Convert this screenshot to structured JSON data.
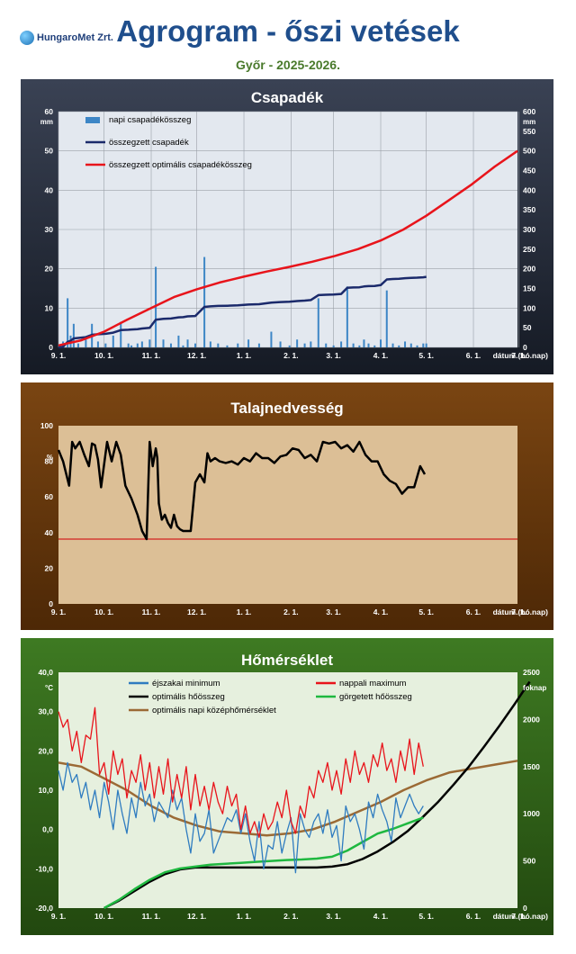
{
  "header": {
    "logo_text": "HungaroMet Zrt.",
    "title": "Agrogram - őszi vetések",
    "subtitle": "Győr - 2025-2026."
  },
  "colors": {
    "title": "#1f4e8c",
    "subtitle": "#4a7a2c",
    "panel1_frame": "#1a2030",
    "panel1_plot": "#e3e8ef",
    "panel2_frame": "#5a3208",
    "panel2_plot": "#dcbf96",
    "panel3_frame": "#2c5a17",
    "panel3_plot": "#e6f0de"
  },
  "chart_data": [
    {
      "type": "bar+line",
      "title": "Csapadék",
      "x_tick_labels": [
        "9. 1.",
        "10. 1.",
        "11. 1.",
        "12. 1.",
        "1. 1.",
        "2. 1.",
        "3. 1.",
        "4. 1.",
        "5. 1.",
        "6. 1.",
        "7. 1."
      ],
      "x_axis_label": "dátum (hó.nap)",
      "y_left": {
        "unit": "mm",
        "range": [
          0,
          60
        ],
        "ticks": [
          "0",
          "10",
          "20",
          "30",
          "40",
          "50",
          "60"
        ]
      },
      "y_right": {
        "unit": "mm",
        "range": [
          0,
          600
        ],
        "ticks": [
          "0",
          "50",
          "100",
          "150",
          "200",
          "250",
          "300",
          "350",
          "400",
          "450",
          "500",
          "550",
          "600"
        ]
      },
      "legend": [
        "napi csapadékösszeg",
        "összegzett csapadék",
        "összegzett optimális csapadékösszeg"
      ],
      "series": [
        {
          "name": "napi csapadékösszeg",
          "axis": "left",
          "color": "#3d86c6",
          "days": [
            3,
            6,
            8,
            10,
            13,
            18,
            22,
            26,
            31,
            36,
            41,
            46,
            48,
            52,
            55,
            60,
            64,
            69,
            74,
            79,
            82,
            85,
            90,
            96,
            100,
            105,
            111,
            118,
            125,
            132,
            140,
            146,
            152,
            157,
            162,
            166,
            171,
            176,
            181,
            186,
            190,
            194,
            198,
            201,
            204,
            208,
            212,
            216,
            220,
            224,
            228,
            232,
            236,
            240,
            242
          ],
          "values": [
            1.5,
            12.5,
            3,
            6,
            1,
            2,
            6,
            1.5,
            1,
            3,
            6.5,
            1,
            0.5,
            1,
            1.5,
            2,
            20.5,
            2,
            1,
            3,
            0.5,
            2,
            1,
            23,
            1.5,
            1,
            0.5,
            1,
            2,
            1,
            4,
            1.5,
            0.5,
            2,
            1,
            1.5,
            12.5,
            1,
            0.5,
            1.5,
            15.5,
            1,
            0.5,
            2,
            1,
            0.5,
            2,
            14.5,
            1,
            0.5,
            1.5,
            1,
            0.5,
            1,
            1
          ]
        },
        {
          "name": "összegzett csapadék",
          "axis": "right",
          "color": "#1b2a6b",
          "days": [
            0,
            3,
            6,
            8,
            10,
            13,
            18,
            22,
            26,
            31,
            36,
            41,
            46,
            48,
            52,
            55,
            60,
            64,
            69,
            74,
            79,
            82,
            85,
            90,
            96,
            100,
            105,
            111,
            118,
            125,
            132,
            140,
            146,
            152,
            157,
            162,
            166,
            171,
            176,
            181,
            186,
            190,
            194,
            198,
            201,
            204,
            208,
            212,
            216,
            220,
            224,
            228,
            232,
            236,
            240,
            242
          ],
          "values": [
            0,
            1.5,
            14,
            17,
            23,
            24,
            26,
            32,
            33.5,
            34.5,
            37.5,
            44,
            45,
            45.5,
            46.5,
            48,
            50,
            70.5,
            72.5,
            73.5,
            76.5,
            77,
            79,
            80,
            103,
            104.5,
            105.5,
            106,
            107,
            109,
            110,
            114,
            115.5,
            116,
            118,
            119,
            120.5,
            133,
            134,
            134.5,
            136,
            151.5,
            152.5,
            153,
            155,
            156,
            156.5,
            158.5,
            173,
            174,
            174.5,
            176,
            177,
            177.5,
            178.5,
            179.5
          ]
        },
        {
          "name": "összegzett optimális csapadékösszeg",
          "axis": "right",
          "color": "#e8141b",
          "days": [
            0,
            15,
            30,
            45,
            61,
            76,
            91,
            106,
            122,
            137,
            152,
            167,
            182,
            197,
            212,
            227,
            242,
            257,
            272,
            287,
            302
          ],
          "values": [
            5,
            18,
            40,
            70,
            100,
            128,
            148,
            165,
            180,
            193,
            205,
            218,
            233,
            250,
            272,
            300,
            335,
            375,
            415,
            460,
            500
          ]
        }
      ]
    },
    {
      "type": "line",
      "title": "Talajnedvesség",
      "x_tick_labels": [
        "9. 1.",
        "10. 1.",
        "11. 1.",
        "12. 1.",
        "1. 1.",
        "2. 1.",
        "3. 1.",
        "4. 1.",
        "5. 1.",
        "6. 1.",
        "7. 1."
      ],
      "x_axis_label": "dátum (hó.nap)",
      "y_left": {
        "unit": "%",
        "range": [
          0,
          110
        ],
        "ticks": [
          "0",
          "20",
          "40",
          "60",
          "80",
          "100"
        ]
      },
      "reference_line": {
        "value": 40,
        "color": "#d22020"
      },
      "series": [
        {
          "name": "",
          "color": "#000000",
          "days": [
            0,
            3,
            7,
            9,
            11,
            14,
            17,
            20,
            22,
            24,
            26,
            28,
            32,
            35,
            38,
            41,
            44,
            48,
            52,
            55,
            58,
            60,
            62,
            64,
            65,
            66,
            68,
            70,
            72,
            74,
            76,
            78,
            80,
            82,
            84,
            87,
            90,
            93,
            96,
            98,
            100,
            103,
            106,
            110,
            114,
            118,
            122,
            126,
            130,
            134,
            138,
            142,
            146,
            150,
            154,
            158,
            162,
            166,
            170,
            174,
            178,
            182,
            186,
            190,
            194,
            198,
            202,
            206,
            210,
            214,
            218,
            222,
            226,
            230,
            234,
            238,
            241
          ],
          "values": [
            95,
            88,
            73,
            100,
            96,
            100,
            92,
            85,
            99,
            98,
            89,
            72,
            100,
            88,
            100,
            92,
            73,
            65,
            55,
            45,
            40,
            100,
            85,
            96,
            90,
            62,
            52,
            55,
            50,
            47,
            55,
            48,
            46,
            45,
            45,
            45,
            75,
            80,
            75,
            93,
            88,
            90,
            88,
            87,
            88,
            86,
            90,
            88,
            93,
            90,
            90,
            87,
            91,
            92,
            96,
            95,
            90,
            92,
            88,
            100,
            99,
            100,
            96,
            98,
            94,
            100,
            92,
            88,
            88,
            80,
            76,
            74,
            68,
            72,
            72,
            85,
            80
          ]
        }
      ]
    },
    {
      "type": "line",
      "title": "Hőmérséklet",
      "x_tick_labels": [
        "9. 1.",
        "10. 1.",
        "11. 1.",
        "12. 1.",
        "1. 1.",
        "2. 1.",
        "3. 1.",
        "4. 1.",
        "5. 1.",
        "6. 1.",
        "7. 1."
      ],
      "x_axis_label": "dátum (hó.nap)",
      "y_left": {
        "unit": "°C",
        "range": [
          -20,
          40
        ],
        "ticks": [
          "-20,0",
          "-10,0",
          "0,0",
          "10,0",
          "20,0",
          "30,0",
          "40,0"
        ]
      },
      "y_right": {
        "unit": "foknap",
        "range": [
          0,
          2500
        ],
        "ticks": [
          "0",
          "500",
          "1000",
          "1500",
          "2000",
          "2500"
        ]
      },
      "legend": [
        "éjszakai minimum",
        "nappali maximum",
        "optimális hőösszeg",
        "görgetett hőösszeg",
        "optimális napi középhőmérséklet"
      ],
      "series": [
        {
          "name": "éjszakai minimum",
          "axis": "left",
          "color": "#2f7cc0",
          "days": [
            0,
            3,
            6,
            9,
            12,
            15,
            18,
            21,
            24,
            27,
            30,
            33,
            36,
            39,
            42,
            45,
            48,
            51,
            54,
            57,
            60,
            63,
            66,
            69,
            72,
            75,
            78,
            81,
            84,
            87,
            90,
            93,
            96,
            99,
            102,
            105,
            108,
            111,
            114,
            117,
            120,
            123,
            126,
            129,
            132,
            135,
            138,
            141,
            144,
            147,
            150,
            153,
            156,
            159,
            162,
            165,
            168,
            171,
            174,
            177,
            180,
            183,
            186,
            189,
            192,
            195,
            198,
            201,
            204,
            207,
            210,
            213,
            216,
            219,
            222,
            225,
            228,
            231,
            234,
            237,
            240
          ],
          "values": [
            15,
            10,
            17,
            12,
            14,
            8,
            12,
            5,
            10,
            3,
            12,
            7,
            0,
            10,
            4,
            -1,
            8,
            3,
            12,
            6,
            9,
            2,
            7,
            5,
            3,
            10,
            5,
            8,
            0,
            -6,
            4,
            -3,
            -1,
            5,
            -6,
            -3,
            0,
            3,
            2,
            5,
            -1,
            4,
            -3,
            -8,
            2,
            -10,
            -4,
            -5,
            2,
            -6,
            -1,
            3,
            -11,
            4,
            0,
            -2,
            2,
            4,
            -1,
            5,
            -2,
            1,
            -8,
            6,
            2,
            4,
            0,
            -5,
            7,
            3,
            9,
            5,
            2,
            -3,
            8,
            3,
            6,
            9,
            6,
            4,
            6
          ]
        },
        {
          "name": "nappali maximum",
          "axis": "left",
          "color": "#e8141b",
          "days": [
            0,
            3,
            6,
            9,
            12,
            15,
            18,
            21,
            24,
            27,
            30,
            33,
            36,
            39,
            42,
            45,
            48,
            51,
            54,
            57,
            60,
            63,
            66,
            69,
            72,
            75,
            78,
            81,
            84,
            87,
            90,
            93,
            96,
            99,
            102,
            105,
            108,
            111,
            114,
            117,
            120,
            123,
            126,
            129,
            132,
            135,
            138,
            141,
            144,
            147,
            150,
            153,
            156,
            159,
            162,
            165,
            168,
            171,
            174,
            177,
            180,
            183,
            186,
            189,
            192,
            195,
            198,
            201,
            204,
            207,
            210,
            213,
            216,
            219,
            222,
            225,
            228,
            231,
            234,
            237,
            240
          ],
          "values": [
            30,
            26,
            28,
            20,
            25,
            17,
            24,
            23,
            31,
            14,
            17,
            9,
            20,
            14,
            18,
            8,
            15,
            12,
            19,
            10,
            17,
            8,
            16,
            9,
            18,
            7,
            14,
            8,
            16,
            5,
            14,
            6,
            11,
            5,
            12,
            7,
            4,
            11,
            6,
            9,
            0,
            6,
            -1,
            2,
            -2,
            4,
            0,
            2,
            7,
            3,
            10,
            2,
            -1,
            6,
            3,
            11,
            8,
            15,
            12,
            17,
            10,
            15,
            9,
            18,
            12,
            20,
            14,
            17,
            12,
            19,
            16,
            22,
            15,
            18,
            12,
            20,
            15,
            23,
            14,
            22,
            16
          ]
        },
        {
          "name": "optimális hőösszeg",
          "axis": "right",
          "color": "#000000",
          "days": [
            30,
            40,
            50,
            60,
            70,
            80,
            90,
            100,
            110,
            120,
            130,
            140,
            150,
            160,
            170,
            180,
            190,
            200,
            210,
            220,
            230,
            240,
            250,
            260,
            270,
            280,
            290,
            300,
            310
          ],
          "values": [
            0,
            80,
            180,
            280,
            360,
            410,
            430,
            430,
            430,
            430,
            430,
            430,
            430,
            430,
            430,
            440,
            465,
            520,
            600,
            700,
            820,
            970,
            1130,
            1310,
            1500,
            1710,
            1930,
            2160,
            2400
          ]
        },
        {
          "name": "görgetett hőösszeg",
          "axis": "right",
          "color": "#1fb840",
          "days": [
            30,
            40,
            50,
            60,
            70,
            80,
            90,
            100,
            110,
            120,
            130,
            140,
            150,
            160,
            170,
            180,
            190,
            200,
            210,
            220,
            230,
            240
          ],
          "values": [
            0,
            90,
            200,
            300,
            380,
            420,
            440,
            460,
            470,
            480,
            490,
            500,
            510,
            515,
            525,
            545,
            610,
            700,
            790,
            840,
            900,
            960
          ]
        },
        {
          "name": "optimális napi középhőmérséklet",
          "axis": "left",
          "color": "#9b6a35",
          "days": [
            0,
            15,
            30,
            45,
            61,
            76,
            91,
            106,
            122,
            137,
            152,
            167,
            182,
            197,
            212,
            227,
            242,
            257,
            272,
            287,
            302
          ],
          "values": [
            17,
            16,
            13,
            10,
            6,
            3,
            1,
            -0.5,
            -1,
            -1.5,
            -1,
            0,
            2,
            4.5,
            7,
            10,
            12.5,
            14.5,
            15.5,
            16.5,
            17.5
          ]
        }
      ]
    }
  ]
}
